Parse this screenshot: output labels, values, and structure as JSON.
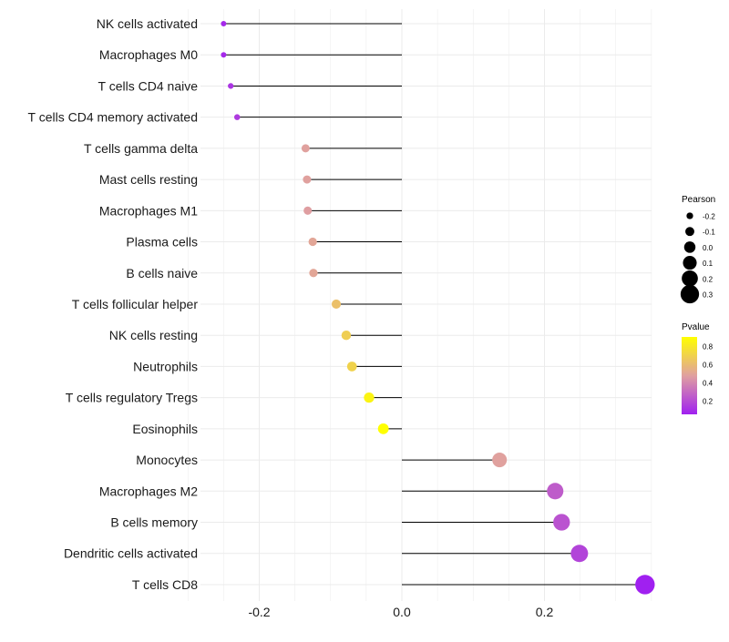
{
  "chart_data": {
    "type": "lollipop",
    "title": "",
    "xlabel": "",
    "ylabel": "",
    "xlim": [
      -0.277,
      0.35
    ],
    "xticks": [
      -0.2,
      0.0,
      0.2
    ],
    "xtick_labels": [
      "-0.2",
      "0.0",
      "0.2"
    ],
    "grid": true,
    "categories": [
      "NK cells activated",
      "Macrophages M0",
      "T cells CD4 naive",
      "T cells CD4 memory activated",
      "T cells gamma delta",
      "Mast cells resting",
      "Macrophages M1",
      "Plasma cells",
      "B cells naive",
      "T cells follicular helper",
      "NK cells resting",
      "Neutrophils",
      "T cells regulatory  Tregs",
      "Eosinophils",
      "Monocytes",
      "Macrophages M2",
      "B cells memory",
      "Dendritic cells activated",
      "T cells CD8"
    ],
    "pearson": [
      -0.25,
      -0.25,
      -0.24,
      -0.231,
      -0.135,
      -0.133,
      -0.132,
      -0.125,
      -0.124,
      -0.092,
      -0.078,
      -0.07,
      -0.046,
      -0.026,
      0.137,
      0.215,
      0.224,
      0.249,
      0.341
    ],
    "pvalue": [
      0.08,
      0.08,
      0.12,
      0.14,
      0.48,
      0.48,
      0.47,
      0.5,
      0.5,
      0.62,
      0.68,
      0.7,
      0.85,
      0.9,
      0.48,
      0.25,
      0.22,
      0.17,
      0.03
    ],
    "legend": {
      "size_title": "Pearson",
      "size_values": [
        -0.2,
        -0.1,
        0.0,
        0.1,
        0.2,
        0.3
      ],
      "size_labels": [
        "-0.2",
        "-0.1",
        "0.0",
        "0.1",
        "0.2",
        "0.3"
      ],
      "color_title": "Pvalue",
      "color_labels": [
        "0.8",
        "0.6",
        "0.4",
        "0.2"
      ],
      "color_values": [
        0.8,
        0.6,
        0.4,
        0.2
      ],
      "color_range": [
        0.05,
        0.9
      ],
      "placement": "right"
    },
    "colors": {
      "low": "#a020f0",
      "mid": "#e0a0a0",
      "high": "#ffff00"
    }
  }
}
